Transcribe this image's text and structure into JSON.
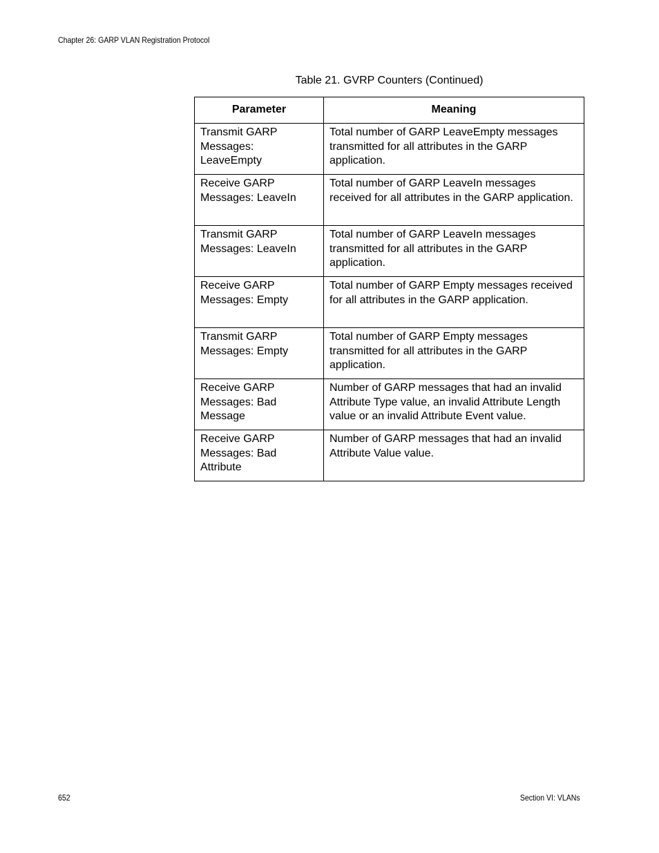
{
  "header": {
    "chapter": "Chapter 26: GARP VLAN Registration Protocol"
  },
  "table": {
    "caption": "Table 21. GVRP Counters (Continued)",
    "columns": [
      "Parameter",
      "Meaning"
    ],
    "rows": [
      {
        "parameter": "Transmit GARP Messages: LeaveEmpty",
        "meaning": "Total number of GARP LeaveEmpty messages transmitted for all attributes in the GARP application."
      },
      {
        "parameter": "Receive GARP Messages: LeaveIn",
        "meaning": "Total number of GARP LeaveIn messages received for all attributes in the GARP application."
      },
      {
        "parameter": "Transmit GARP Messages: LeaveIn",
        "meaning": "Total number of GARP LeaveIn messages transmitted for all attributes in the GARP application."
      },
      {
        "parameter": "Receive GARP Messages: Empty",
        "meaning": "Total number of GARP Empty messages received for all attributes in the GARP application."
      },
      {
        "parameter": "Transmit GARP Messages: Empty",
        "meaning": "Total number of GARP Empty messages transmitted for all attributes in the GARP application."
      },
      {
        "parameter": "Receive GARP Messages: Bad Message",
        "meaning": "Number of GARP messages that had an invalid Attribute Type value, an invalid Attribute Length value or an invalid Attribute Event value."
      },
      {
        "parameter": "Receive GARP Messages: Bad Attribute",
        "meaning": "Number of GARP messages that had an invalid Attribute Value value."
      }
    ]
  },
  "footer": {
    "page_number": "652",
    "section": "Section VI: VLANs"
  }
}
